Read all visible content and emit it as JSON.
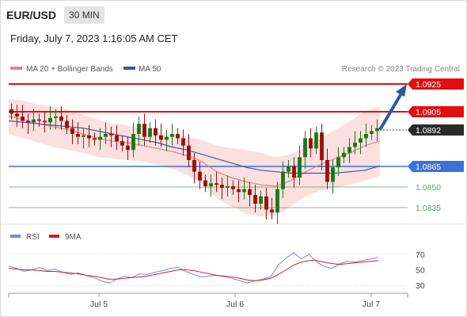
{
  "header": {
    "pair": "EUR/USD",
    "timeframe": "30 MIN"
  },
  "datetime": "Friday, July 7, 2023 1:16:05 AM CET",
  "legend": {
    "ma20_label": "MA 20 + Bollinger Bands",
    "ma50_label": "MA 50",
    "copyright": "Research © 2023 Trading Central"
  },
  "rsi_legend": {
    "rsi_label": "RSI",
    "ma_label": "9MA"
  },
  "colors": {
    "bull": "#1a7a1a",
    "bear": "#9b1010",
    "resistance": "#e01010",
    "support": "#3a72d8",
    "support_thin": "#5aa85a",
    "ma20": "#e88080",
    "ma50": "#3a5aa0",
    "band": "#fbd9d9",
    "rsi": "#6a8ee0",
    "rsi_ma": "#d42020",
    "arrow": "#2b5a9e",
    "current": "#2b2b2b"
  },
  "chart_data": [
    {
      "type": "line",
      "title": "EUR/USD 30 MIN",
      "x_ticks": [
        "Jul 5",
        "Jul 6",
        "Jul 7"
      ],
      "ylim": [
        1.0828,
        1.093
      ],
      "series": [
        {
          "name": "MA 20 + Bollinger Bands",
          "values": [
            1.09,
            1.0898,
            1.0895,
            1.0893,
            1.0891,
            1.0888,
            1.0885,
            1.0883,
            1.0882,
            1.088,
            1.0878,
            1.0876,
            1.0873,
            1.0869,
            1.0862,
            1.0858,
            1.0855,
            1.0853,
            1.0852,
            1.0856,
            1.0862,
            1.0867,
            1.0871,
            1.0875,
            1.088,
            1.0883
          ]
        },
        {
          "name": "MA 50",
          "values": [
            1.0897,
            1.0896,
            1.0895,
            1.0894,
            1.0893,
            1.0892,
            1.089,
            1.0888,
            1.0886,
            1.0884,
            1.0882,
            1.0879,
            1.0877,
            1.0874,
            1.0871,
            1.0868,
            1.0865,
            1.0863,
            1.0862,
            1.0861,
            1.0861,
            1.0861,
            1.0861,
            1.0862,
            1.0863,
            1.0866
          ]
        }
      ],
      "candles_close": [
        1.0902,
        1.09,
        1.0897,
        1.0896,
        1.0898,
        1.0897,
        1.0896,
        1.0899,
        1.09,
        1.0897,
        1.0892,
        1.0888,
        1.0886,
        1.0887,
        1.0885,
        1.0884,
        1.0886,
        1.0888,
        1.0887,
        1.0883,
        1.088,
        1.0877,
        1.0888,
        1.0895,
        1.0886,
        1.0892,
        1.0887,
        1.0884,
        1.0886,
        1.0888,
        1.0885,
        1.088,
        1.087,
        1.0862,
        1.0856,
        1.0852,
        1.0854,
        1.0853,
        1.0851,
        1.0852,
        1.085,
        1.0848,
        1.085,
        1.0846,
        1.084,
        1.0845,
        1.0836,
        1.0834,
        1.085,
        1.0862,
        1.0866,
        1.0858,
        1.0872,
        1.0885,
        1.0878,
        1.0889,
        1.087,
        1.0855,
        1.0865,
        1.0872,
        1.0875,
        1.0879,
        1.0882,
        1.0885,
        1.0888,
        1.089,
        1.0892
      ],
      "levels": [
        {
          "label": "1.0925",
          "kind": "resistance"
        },
        {
          "label": "1.0905",
          "kind": "resistance"
        },
        {
          "label": "1.0892",
          "kind": "current"
        },
        {
          "label": "1.0865",
          "kind": "support"
        },
        {
          "label": "1.0850",
          "kind": "support_thin"
        },
        {
          "label": "1.0835",
          "kind": "support_thin"
        }
      ]
    },
    {
      "type": "line",
      "title": "",
      "ylim": [
        25,
        75
      ],
      "y_ticks": [
        "70",
        "50",
        "30"
      ],
      "series": [
        {
          "name": "RSI",
          "values": [
            55,
            52,
            48,
            50,
            53,
            49,
            51,
            47,
            44,
            46,
            43,
            40,
            36,
            33,
            38,
            42,
            40,
            45,
            44,
            47,
            49,
            52,
            53,
            48,
            44,
            41,
            42,
            43,
            41,
            39,
            36,
            33,
            36,
            38,
            41,
            56,
            65,
            72,
            64,
            70,
            60,
            54,
            52,
            58,
            61,
            60,
            62,
            64,
            66
          ]
        },
        {
          "name": "9MA",
          "values": [
            52,
            51,
            50,
            50,
            49,
            48,
            48,
            47,
            46,
            45,
            43,
            42,
            40,
            38,
            38,
            39,
            40,
            41,
            42,
            44,
            46,
            48,
            50,
            50,
            49,
            47,
            45,
            43,
            42,
            41,
            39,
            37,
            36,
            37,
            39,
            44,
            50,
            56,
            60,
            62,
            62,
            60,
            58,
            57,
            58,
            59,
            60,
            61,
            62
          ]
        }
      ]
    }
  ]
}
